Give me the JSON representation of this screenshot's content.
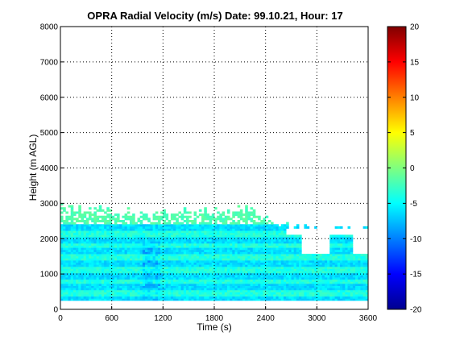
{
  "chart_data": {
    "type": "heatmap",
    "title": "OPRA Radial Velocity (m/s)  Date: 99.10.21, Hour: 17",
    "xlabel": "Time (s)",
    "ylabel": "Height (m AGL)",
    "xlim": [
      0,
      3600
    ],
    "ylim": [
      0,
      8000
    ],
    "xticks": [
      "0",
      "600",
      "1200",
      "1800",
      "2400",
      "3000",
      "3600"
    ],
    "xtick_values": [
      0,
      600,
      1200,
      1800,
      2400,
      3000,
      3600
    ],
    "yticks": [
      "0",
      "1000",
      "2000",
      "3000",
      "4000",
      "5000",
      "6000",
      "7000",
      "8000"
    ],
    "ytick_values": [
      0,
      1000,
      2000,
      3000,
      4000,
      5000,
      6000,
      7000,
      8000
    ],
    "grid": true,
    "grid_style": "dotted",
    "colormap": "jet",
    "colorbar": {
      "clim": [
        -20,
        20
      ],
      "ticks": [
        "20",
        "15",
        "10",
        "5",
        "0",
        "-5",
        "-10",
        "-15",
        "-20"
      ],
      "tick_values": [
        20,
        15,
        10,
        5,
        0,
        -5,
        -10,
        -15,
        -20
      ],
      "placement": "right"
    },
    "data_extent": {
      "time_range": [
        0,
        3600
      ],
      "height_range": [
        250,
        3000
      ],
      "height_top_by_time": [
        {
          "t": 0,
          "h": 3000
        },
        {
          "t": 950,
          "h": 2800
        },
        {
          "t": 1500,
          "h": 2850
        },
        {
          "t": 2100,
          "h": 2950
        },
        {
          "t": 2600,
          "h": 2500
        },
        {
          "t": 2950,
          "h": 2350
        },
        {
          "t": 3600,
          "h": 2350
        }
      ],
      "gaps": [
        {
          "t": [
            2620,
            3600
          ],
          "h": [
            2100,
            2250
          ]
        },
        {
          "t": [
            2800,
            3150
          ],
          "h": [
            1550,
            2100
          ]
        },
        {
          "t": [
            3420,
            3600
          ],
          "h": [
            1550,
            2100
          ]
        }
      ],
      "typical_velocity_range": [
        -8,
        0
      ]
    }
  }
}
